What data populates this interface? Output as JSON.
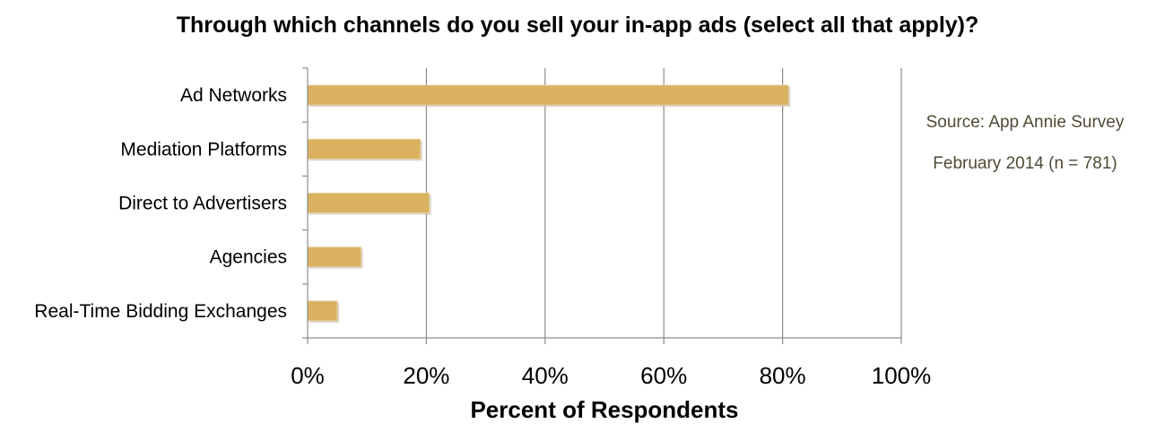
{
  "chart_data": {
    "type": "bar",
    "orientation": "horizontal",
    "title": "Through which channels do you sell your in-app ads (select all that apply)?",
    "xlabel": "Percent of Respondents",
    "ylabel": "",
    "categories": [
      "Ad Networks",
      "Mediation Platforms",
      "Direct to Advertisers",
      "Agencies",
      "Real-Time Bidding Exchanges"
    ],
    "values": [
      81,
      19,
      20.5,
      9,
      5
    ],
    "xlim": [
      0,
      100
    ],
    "x_ticks": [
      "0%",
      "20%",
      "40%",
      "60%",
      "80%",
      "100%"
    ],
    "grid": "vertical",
    "bar_color": "#d9b15f",
    "annotation": {
      "line1": "Source: App Annie Survey",
      "line2": "February 2014 (n = 781)"
    }
  }
}
